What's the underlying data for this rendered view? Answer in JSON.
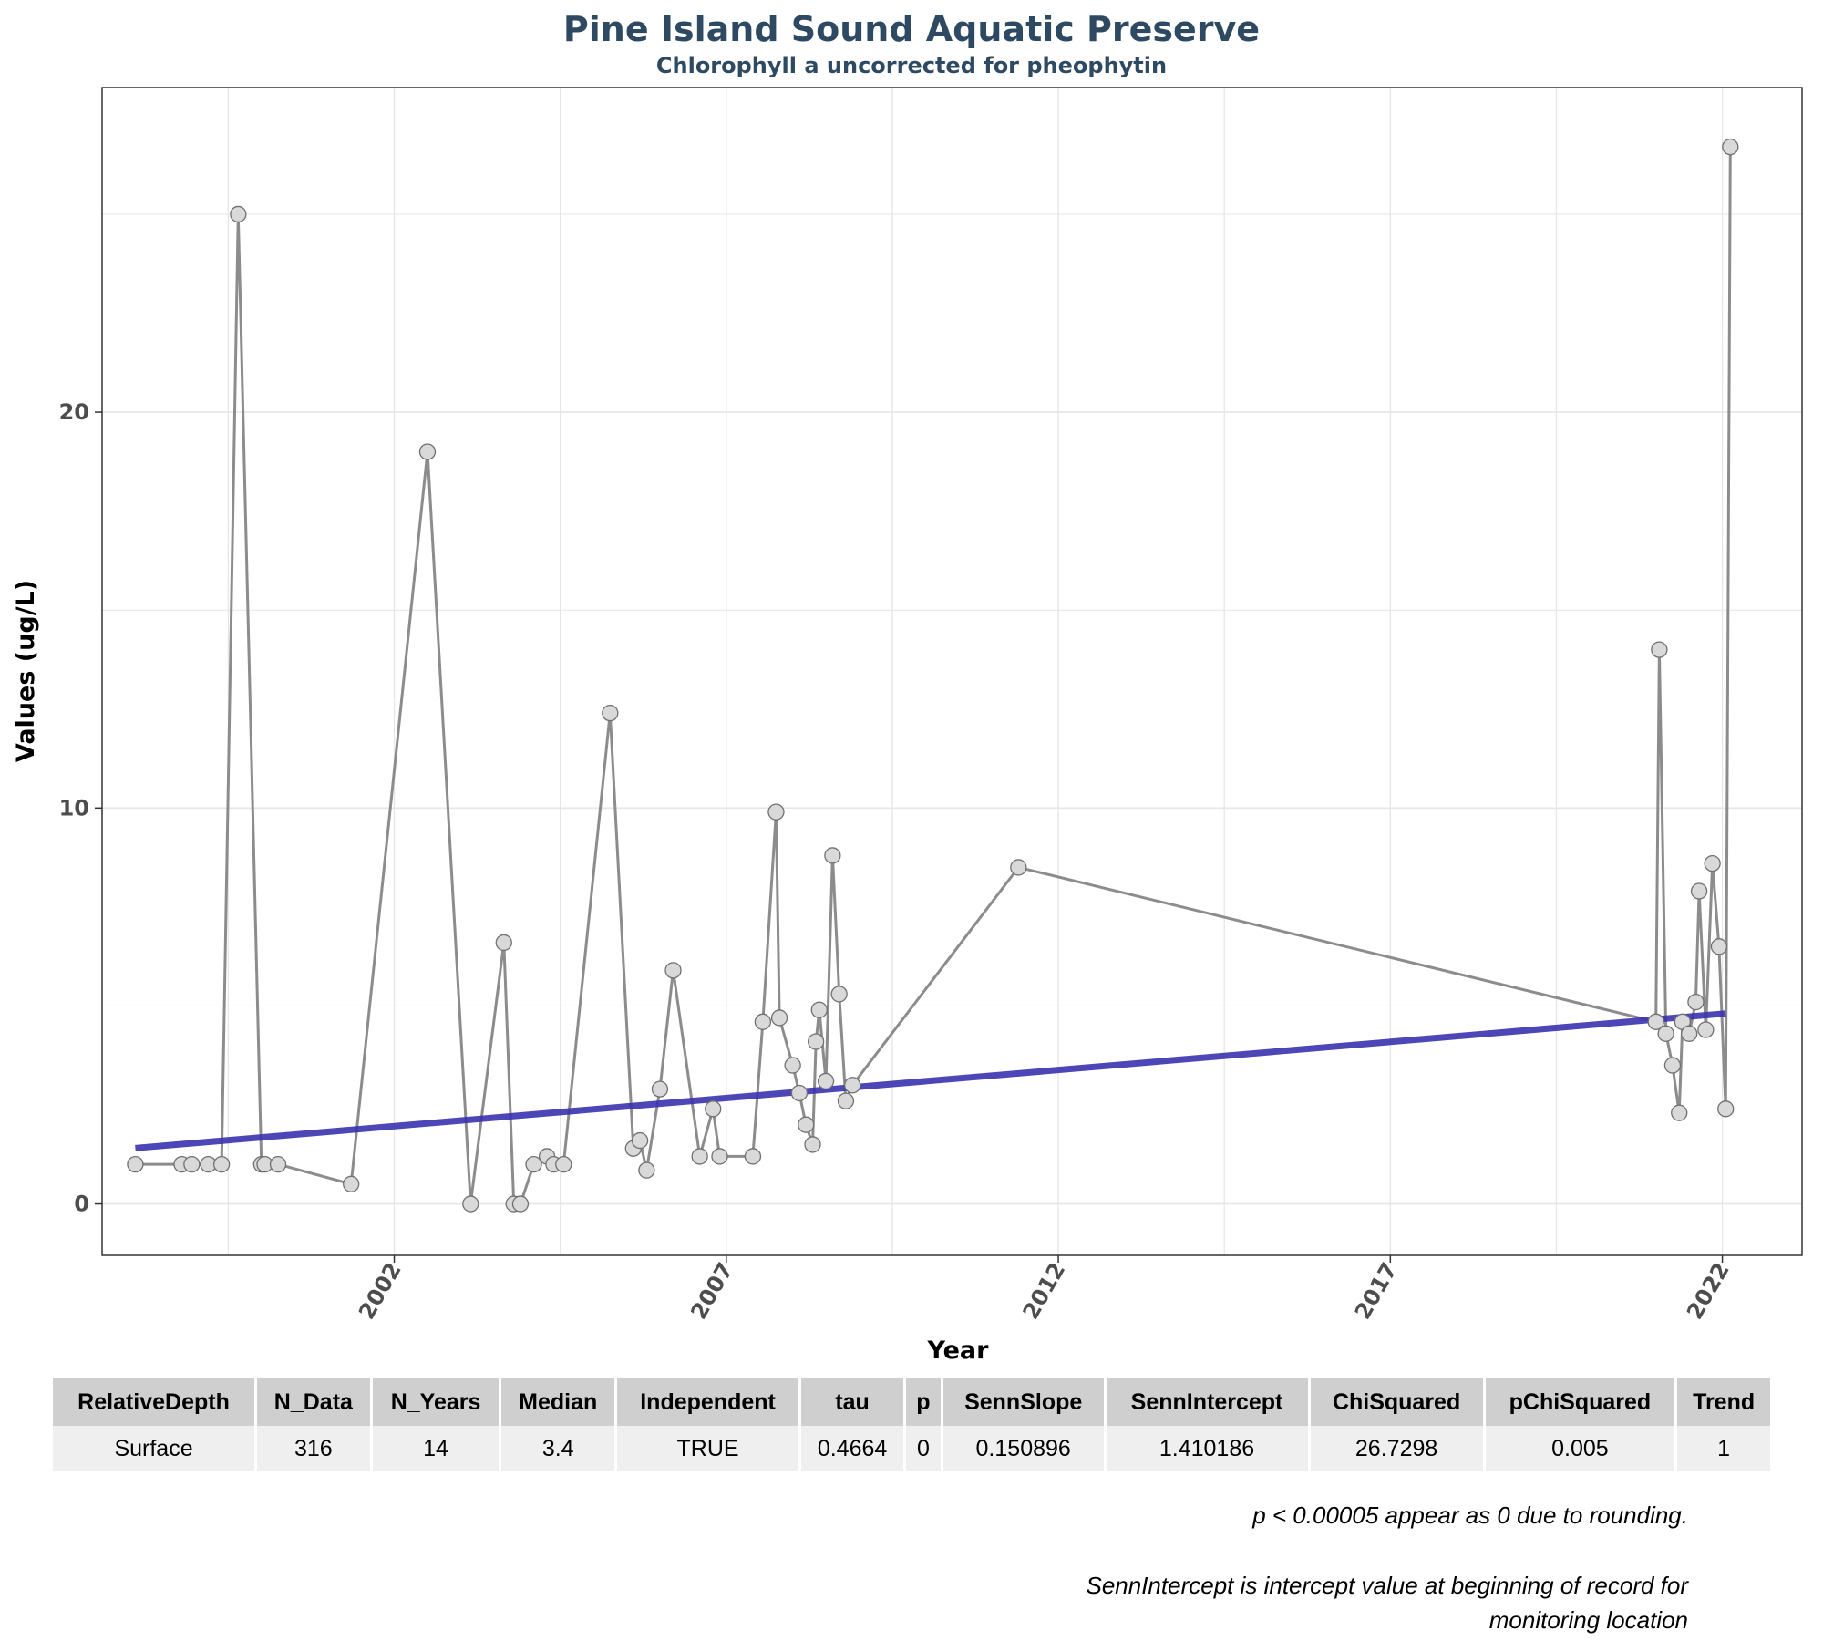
{
  "chart_data": {
    "type": "line",
    "title": "Pine Island Sound Aquatic Preserve",
    "subtitle": "Chlorophyll a uncorrected for pheophytin",
    "xlabel": "Year",
    "ylabel": "Values (ug/L)",
    "x_ticks": [
      "2002",
      "2007",
      "2012",
      "2017",
      "2022"
    ],
    "y_ticks": [
      "0",
      "10",
      "20"
    ],
    "xlim": [
      1997.6,
      2023.2
    ],
    "ylim": [
      -1.3,
      28.2
    ],
    "grid": true,
    "series": [
      {
        "type": "line+points",
        "x": [
          1998.1,
          1998.8,
          1998.95,
          1999.2,
          1999.4,
          1999.65,
          2000.0,
          2000.05,
          2000.25,
          2001.35,
          2002.5,
          2003.15,
          2003.65,
          2003.8,
          2003.9,
          2004.1,
          2004.3,
          2004.4,
          2004.55,
          2005.25,
          2005.6,
          2005.7,
          2005.8,
          2006.0,
          2006.2,
          2006.6,
          2006.8,
          2006.9,
          2007.4,
          2007.55,
          2007.75,
          2007.8,
          2008.0,
          2008.1,
          2008.2,
          2008.3,
          2008.35,
          2008.4,
          2008.5,
          2008.6,
          2008.7,
          2008.8,
          2008.9,
          2011.4,
          2021.0,
          2021.05,
          2021.15,
          2021.25,
          2021.35,
          2021.4,
          2021.5,
          2021.6,
          2021.65,
          2021.75,
          2021.85,
          2021.95,
          2022.05,
          2022.12
        ],
        "values": [
          1.0,
          1.0,
          1.0,
          1.0,
          1.0,
          25.0,
          1.0,
          1.0,
          1.0,
          0.5,
          19.0,
          0.0,
          6.6,
          0.0,
          0.0,
          1.0,
          1.2,
          1.0,
          1.0,
          12.4,
          1.4,
          1.6,
          0.85,
          2.9,
          5.9,
          1.2,
          2.4,
          1.2,
          1.2,
          4.6,
          9.9,
          4.7,
          3.5,
          2.8,
          2.0,
          1.5,
          4.1,
          4.9,
          3.1,
          8.8,
          5.3,
          2.6,
          3.0,
          8.5,
          4.6,
          14.0,
          4.3,
          3.5,
          2.3,
          4.6,
          4.3,
          5.1,
          7.9,
          4.4,
          8.6,
          6.5,
          2.4,
          26.7
        ]
      },
      {
        "name": "",
        "type": "trend",
        "color": "#3a32b0",
        "x": [
          1998.1,
          2022.05
        ],
        "values": [
          1.41,
          4.81
        ]
      }
    ],
    "colors": {
      "line": "#8c8c8c",
      "point_fill": "#d9d9d9",
      "point_stroke": "#707070",
      "trend": "#3a32b0",
      "grid": "#e6e6e6",
      "title": "#2e4a63"
    }
  },
  "table": {
    "headers": [
      "RelativeDepth",
      "N_Data",
      "N_Years",
      "Median",
      "Independent",
      "tau",
      "p",
      "SennSlope",
      "SennIntercept",
      "ChiSquared",
      "pChiSquared",
      "Trend"
    ],
    "row": [
      "Surface",
      "316",
      "14",
      "3.4",
      "TRUE",
      "0.4664",
      "0",
      "0.150896",
      "1.410186",
      "26.7298",
      "0.005",
      "1"
    ]
  },
  "notes": {
    "rounding": "p < 0.00005 appear as 0 due to rounding.",
    "intercept": "SennIntercept is intercept value at beginning of record for monitoring location"
  }
}
